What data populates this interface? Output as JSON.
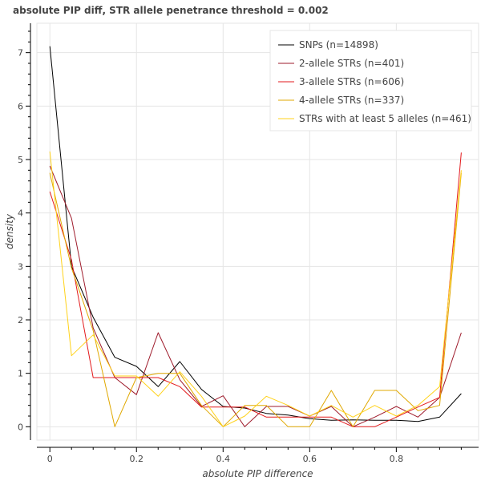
{
  "chart_data": {
    "type": "line",
    "title": "absolute PIP diff, STR allele penetrance threshold = 0.002",
    "xlabel": "absolute PIP difference",
    "ylabel": "density",
    "xlim": [
      -0.03,
      0.99
    ],
    "ylim": [
      -0.25,
      7.55
    ],
    "xticks": [
      0,
      0.2,
      0.4,
      0.6,
      0.8
    ],
    "xtick_labels": [
      "0",
      "0.2",
      "0.4",
      "0.6",
      "0.8"
    ],
    "yticks": [
      0,
      1,
      2,
      3,
      4,
      5,
      6,
      7
    ],
    "ytick_labels": [
      "0",
      "1",
      "2",
      "3",
      "4",
      "5",
      "6",
      "7"
    ],
    "grid": true,
    "legend_position": "top-right",
    "x": [
      0,
      0.05,
      0.1,
      0.15,
      0.2,
      0.25,
      0.3,
      0.35,
      0.4,
      0.45,
      0.5,
      0.55,
      0.6,
      0.65,
      0.7,
      0.75,
      0.8,
      0.85,
      0.9,
      0.95
    ],
    "series": [
      {
        "name": "SNPs (n=14898)",
        "color": "#000000",
        "values": [
          7.12,
          3.0,
          2.05,
          1.3,
          1.13,
          0.75,
          1.22,
          0.7,
          0.38,
          0.35,
          0.25,
          0.22,
          0.15,
          0.12,
          0.13,
          0.12,
          0.12,
          0.1,
          0.18,
          0.62
        ]
      },
      {
        "name": "2-allele STRs (n=401)",
        "color": "#9e1b2b",
        "values": [
          4.88,
          3.9,
          1.85,
          0.92,
          0.6,
          1.76,
          0.88,
          0.38,
          0.58,
          0.0,
          0.38,
          0.38,
          0.2,
          0.38,
          0.0,
          0.18,
          0.38,
          0.18,
          0.55,
          1.76
        ]
      },
      {
        "name": "3-allele STRs (n=606)",
        "color": "#e31a1c",
        "values": [
          4.4,
          3.12,
          0.92,
          0.92,
          0.92,
          0.92,
          0.75,
          0.37,
          0.37,
          0.37,
          0.18,
          0.18,
          0.18,
          0.18,
          0.0,
          0.0,
          0.18,
          0.37,
          0.55,
          5.13
        ]
      },
      {
        "name": "4-allele STRs (n=337)",
        "color": "#e0a800",
        "values": [
          4.75,
          2.97,
          1.8,
          0.0,
          0.92,
          1.0,
          1.0,
          0.4,
          0.0,
          0.4,
          0.4,
          0.0,
          0.0,
          0.68,
          0.0,
          0.68,
          0.68,
          0.3,
          0.4,
          4.75
        ]
      },
      {
        "name": "STRs with at least 5 alleles (n=461)",
        "color": "#ffd21a",
        "values": [
          5.15,
          1.33,
          1.72,
          0.95,
          0.95,
          0.57,
          1.03,
          0.57,
          0.0,
          0.2,
          0.57,
          0.4,
          0.2,
          0.4,
          0.18,
          0.4,
          0.2,
          0.4,
          0.75,
          4.8
        ]
      }
    ]
  }
}
